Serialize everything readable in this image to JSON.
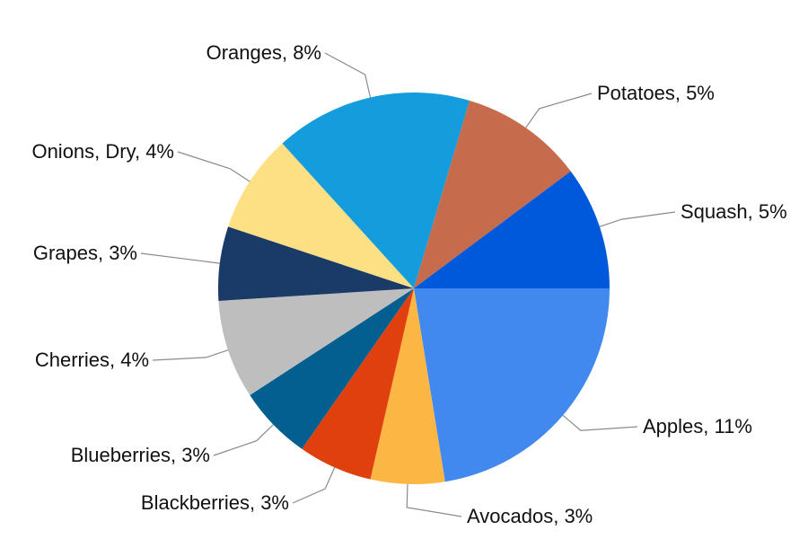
{
  "chart_data": {
    "type": "pie",
    "title": "",
    "slices": [
      {
        "label": "Apples, 11%",
        "value": 11,
        "color": "#4189EE"
      },
      {
        "label": "Avocados, 3%",
        "value": 3,
        "color": "#FBB644"
      },
      {
        "label": "Blackberries, 3%",
        "value": 3,
        "color": "#E0400E"
      },
      {
        "label": "Blueberries, 3%",
        "value": 3,
        "color": "#035F8F"
      },
      {
        "label": "Cherries, 4%",
        "value": 4,
        "color": "#BEBEBE"
      },
      {
        "label": "Grapes, 3%",
        "value": 3,
        "color": "#1A3A68"
      },
      {
        "label": "Onions, Dry, 4%",
        "value": 4,
        "color": "#FDE083"
      },
      {
        "label": "Oranges, 8%",
        "value": 8,
        "color": "#149CDD"
      },
      {
        "label": "Potatoes, 5%",
        "value": 5,
        "color": "#C76B4D"
      },
      {
        "label": "Squash, 5%",
        "value": 5,
        "color": "#0059DB"
      }
    ],
    "start_direction": "3 o'clock",
    "direction": "clockwise",
    "labels": "outside with leader lines",
    "legend": "none"
  }
}
